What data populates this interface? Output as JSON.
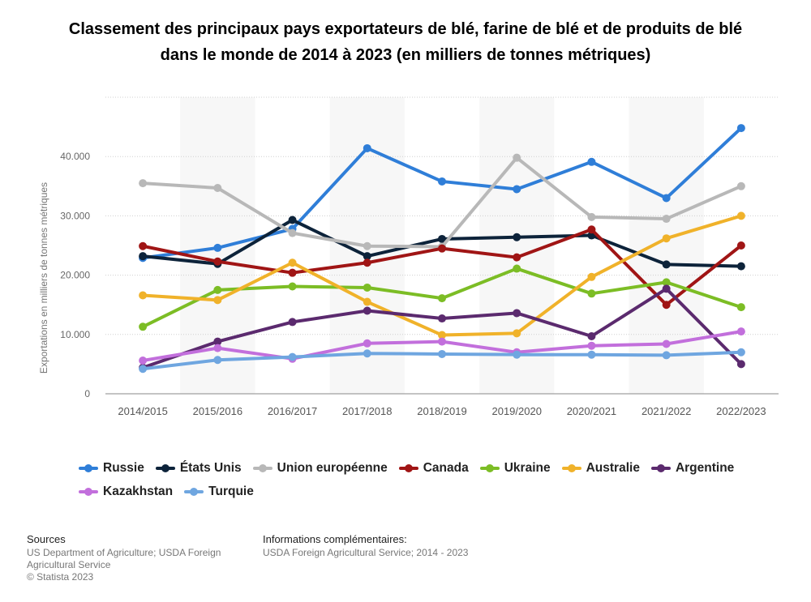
{
  "title": "Classement des principaux pays exportateurs de blé, farine de blé et de produits de blé dans le monde de 2014 à 2023 (en milliers de tonnes métriques)",
  "footer": {
    "sources_heading": "Sources",
    "sources_text": "US Department of Agriculture; USDA Foreign Agricultural Service",
    "copyright": "© Statista 2023",
    "info_heading": "Informations complémentaires:",
    "info_text": "USDA Foreign Agricultural Service; 2014 - 2023"
  },
  "chart_data": {
    "type": "line",
    "title": "Classement des principaux pays exportateurs de blé, farine de blé et de produits de blé dans le monde de 2014 à 2023 (en milliers de tonnes métriques)",
    "xlabel": "",
    "ylabel": "Exportations en milliers de tonnes métriques",
    "ylim": [
      0,
      50000
    ],
    "yticks": [
      0,
      10000,
      20000,
      30000,
      40000
    ],
    "ytick_labels": [
      "0",
      "10.000",
      "20.000",
      "30.000",
      "40.000"
    ],
    "grid": true,
    "legend_position": "bottom",
    "categories": [
      "2014/2015",
      "2015/2016",
      "2016/2017",
      "2017/2018",
      "2018/2019",
      "2019/2020",
      "2020/2021",
      "2021/2022",
      "2022/2023"
    ],
    "series": [
      {
        "name": "Russie",
        "color": "#2f7ed8",
        "values": [
          22900,
          24600,
          27800,
          41400,
          35800,
          34500,
          39100,
          33000,
          44800
        ]
      },
      {
        "name": "États Unis",
        "color": "#0d233a",
        "values": [
          23200,
          21900,
          29300,
          23200,
          26100,
          26400,
          26700,
          21800,
          21500
        ]
      },
      {
        "name": "Union européenne",
        "color": "#b8b8b8",
        "values": [
          35500,
          34700,
          27100,
          24900,
          24800,
          39800,
          29800,
          29500,
          35000
        ]
      },
      {
        "name": "Canada",
        "color": "#a01515",
        "values": [
          24900,
          22300,
          20400,
          22100,
          24500,
          23000,
          27700,
          15000,
          25000
        ]
      },
      {
        "name": "Ukraine",
        "color": "#7cbd25",
        "values": [
          11300,
          17500,
          18100,
          17900,
          16100,
          21100,
          16900,
          18800,
          14600
        ]
      },
      {
        "name": "Australie",
        "color": "#f0b22a",
        "values": [
          16600,
          15800,
          22100,
          15500,
          9900,
          10200,
          19700,
          26200,
          30000
        ]
      },
      {
        "name": "Argentine",
        "color": "#5b2a6e",
        "values": [
          4400,
          8800,
          12100,
          14000,
          12700,
          13600,
          9700,
          17700,
          5000
        ]
      },
      {
        "name": "Kazakhstan",
        "color": "#c26fdc",
        "values": [
          5600,
          7700,
          5900,
          8500,
          8800,
          7000,
          8100,
          8400,
          10500
        ]
      },
      {
        "name": "Turquie",
        "color": "#6fa6e0",
        "values": [
          4200,
          5700,
          6200,
          6800,
          6700,
          6600,
          6600,
          6500,
          7000
        ]
      }
    ]
  }
}
